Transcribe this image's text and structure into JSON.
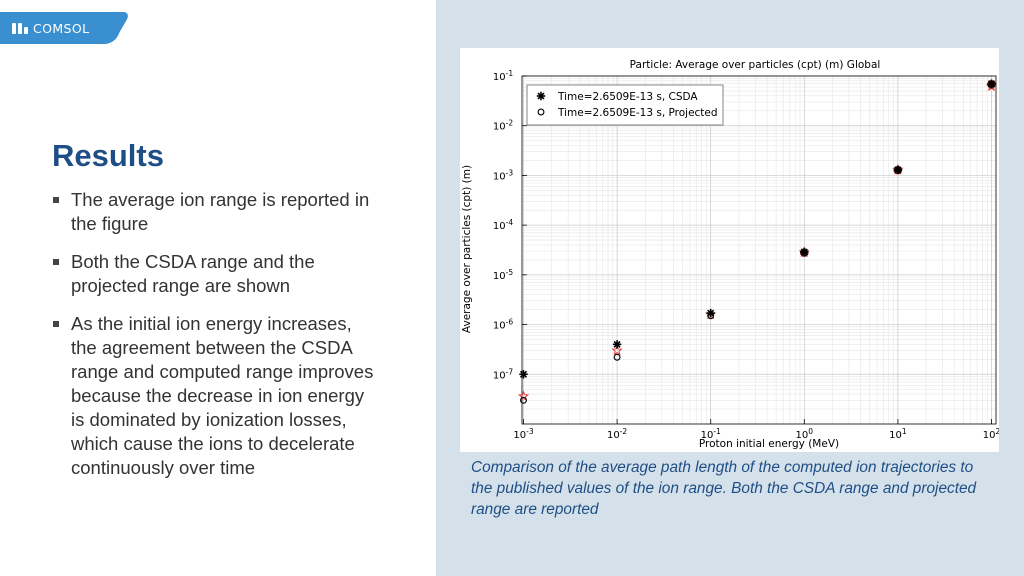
{
  "brand": {
    "logo_text": "COMSOL",
    "accent": "#3a8fd0"
  },
  "slide": {
    "title": "Results",
    "bullets": [
      "The average ion range is reported in the figure",
      "Both the CSDA range and the projected range are shown",
      "As the initial ion energy increases, the agreement between the CSDA range and computed range improves because the decrease in ion energy is dominated by ionization losses, which cause the ions to decelerate continuously over time"
    ],
    "caption": "Comparison of the average path length of the computed ion trajectories to the published values of the ion range. Both the CSDA range and projected range are reported"
  },
  "chart_data": {
    "type": "scatter",
    "title": "Particle: Average over particles (cpt) (m)  Global",
    "xlabel": "Proton initial energy (MeV)",
    "ylabel": "Average over particles (cpt) (m)",
    "xscale": "log",
    "yscale": "log",
    "xlim": [
      0.001,
      100
    ],
    "ylim": [
      1e-08,
      0.1
    ],
    "x_ticks": [
      0.001,
      0.01,
      0.1,
      1,
      10,
      100
    ],
    "x_tick_labels": [
      {
        "base": "10",
        "exp": "-3"
      },
      {
        "base": "10",
        "exp": "-2"
      },
      {
        "base": "10",
        "exp": "-1"
      },
      {
        "base": "10",
        "exp": "0"
      },
      {
        "base": "10",
        "exp": "1"
      },
      {
        "base": "10",
        "exp": "2"
      }
    ],
    "y_ticks": [
      1e-07,
      1e-06,
      1e-05,
      0.0001,
      0.001,
      0.01,
      0.1
    ],
    "y_tick_labels": [
      {
        "base": "10",
        "exp": "-7"
      },
      {
        "base": "10",
        "exp": "-6"
      },
      {
        "base": "10",
        "exp": "-5"
      },
      {
        "base": "10",
        "exp": "-4"
      },
      {
        "base": "10",
        "exp": "-3"
      },
      {
        "base": "10",
        "exp": "-2"
      },
      {
        "base": "10",
        "exp": "-1"
      }
    ],
    "grid": true,
    "legend_position": "top-left",
    "series": [
      {
        "name": "Time=2.6509E-13 s, CSDA",
        "marker": "asterisk",
        "color": "#000000",
        "x": [
          0.001,
          0.01,
          0.1,
          1,
          10,
          100
        ],
        "y": [
          1e-07,
          4e-07,
          1.7e-06,
          2.9e-05,
          0.0013,
          0.07
        ]
      },
      {
        "name": "Time=2.6509E-13 s, Projected",
        "marker": "circle",
        "color": "#000000",
        "x": [
          0.001,
          0.01,
          0.1,
          1,
          10,
          100
        ],
        "y": [
          3e-08,
          2.2e-07,
          1.5e-06,
          2.8e-05,
          0.00128,
          0.068
        ]
      },
      {
        "name": "",
        "marker": "star-outline",
        "color": "#e04040",
        "x": [
          0.001,
          0.01,
          0.1,
          1,
          10,
          100
        ],
        "y": [
          3.6e-08,
          3e-07,
          1.6e-06,
          2.85e-05,
          0.0013,
          0.062
        ]
      }
    ]
  }
}
